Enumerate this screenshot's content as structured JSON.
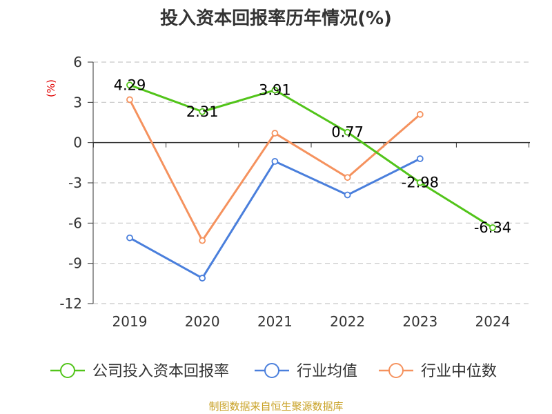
{
  "title": "投入资本回报率历年情况(%)",
  "source": "制图数据来自恒生聚源数据库",
  "chart_data": {
    "type": "line",
    "title": "投入资本回报率历年情况(%)",
    "ylabel": "(%)",
    "xlabel": "",
    "categories": [
      "2019",
      "2020",
      "2021",
      "2022",
      "2023",
      "2024"
    ],
    "ylim": [
      -12,
      6
    ],
    "yticks": [
      6,
      3,
      0,
      -3,
      -6,
      -9,
      -12
    ],
    "grid": true,
    "legend_position": "bottom",
    "series": [
      {
        "name": "公司投入资本回报率",
        "color": "#52c41a",
        "values": [
          4.29,
          2.31,
          3.91,
          0.77,
          -2.98,
          -6.34
        ],
        "labels": [
          "4.29",
          "2.31",
          "3.91",
          "0.77",
          "-2.98",
          "-6.34"
        ]
      },
      {
        "name": "行业均值",
        "color": "#4a7fdc",
        "values": [
          -7.1,
          -10.1,
          -1.4,
          -3.9,
          -1.2,
          null
        ]
      },
      {
        "name": "行业中位数",
        "color": "#f5925e",
        "values": [
          3.2,
          -7.3,
          0.7,
          -2.6,
          2.1,
          null
        ]
      }
    ]
  }
}
